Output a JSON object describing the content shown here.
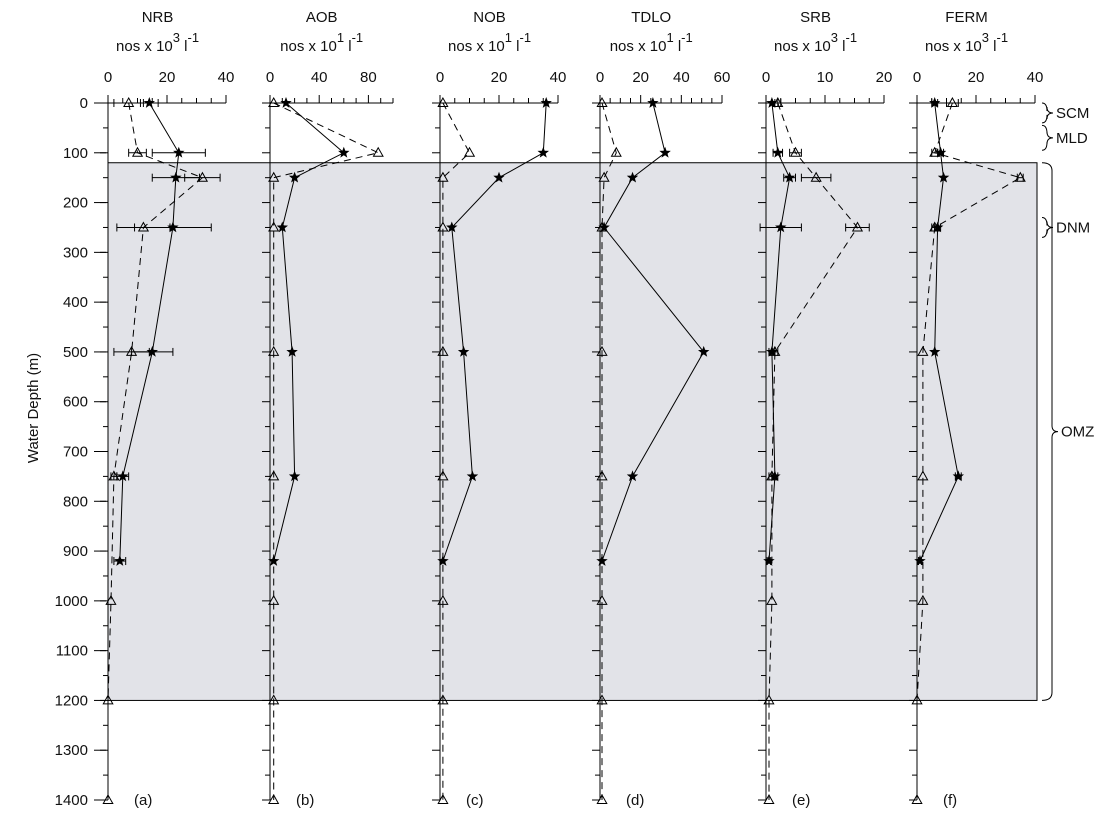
{
  "chart_data": {
    "type": "line",
    "ylabel": "Water Depth (m)",
    "ylim": [
      1400,
      0
    ],
    "yticks": [
      0,
      100,
      200,
      300,
      400,
      500,
      600,
      700,
      800,
      900,
      1000,
      1100,
      1200,
      1300,
      1400
    ],
    "shaded_region": {
      "from_depth": 120,
      "to_depth": 1200
    },
    "zone_labels": [
      {
        "text": "SCM",
        "from": 0,
        "to": 40
      },
      {
        "text": "MLD",
        "from": 45,
        "to": 95
      },
      {
        "text": "DNM",
        "from": 230,
        "to": 270
      },
      {
        "text": "OMZ",
        "from": 120,
        "to": 1200
      }
    ],
    "panels": [
      {
        "id": "a",
        "name": "NRB",
        "unit_exp": "3",
        "xlim": [
          0,
          40
        ],
        "xticks": [
          0,
          20,
          40
        ],
        "solid": {
          "depth": [
            0,
            100,
            150,
            250,
            500,
            750,
            920
          ],
          "values": [
            14,
            24,
            23,
            22,
            15,
            5,
            4
          ],
          "err": [
            3,
            9,
            8,
            13,
            7,
            2,
            2
          ]
        },
        "dashed": {
          "depth": [
            0,
            100,
            150,
            250,
            500,
            750,
            1000,
            1200,
            1400
          ],
          "values": [
            7,
            10,
            32,
            12,
            8,
            2,
            1,
            0,
            0
          ],
          "err": [
            5,
            3,
            6,
            9,
            6,
            1,
            0,
            0,
            0
          ]
        }
      },
      {
        "id": "b",
        "name": "AOB",
        "unit_exp": "1",
        "xlim": [
          0,
          100
        ],
        "xticks": [
          0,
          40,
          80
        ],
        "solid": {
          "depth": [
            0,
            100,
            150,
            250,
            500,
            750,
            920
          ],
          "values": [
            13,
            60,
            20,
            10,
            18,
            20,
            3
          ],
          "err": [
            0,
            0,
            0,
            0,
            0,
            0,
            0
          ]
        },
        "dashed": {
          "depth": [
            0,
            100,
            150,
            250,
            500,
            750,
            1000,
            1200,
            1400
          ],
          "values": [
            3,
            88,
            3,
            3,
            3,
            3,
            3,
            3,
            3
          ],
          "err": [
            0,
            0,
            0,
            0,
            0,
            0,
            0,
            0,
            0
          ]
        }
      },
      {
        "id": "c",
        "name": "NOB",
        "unit_exp": "1",
        "xlim": [
          0,
          40
        ],
        "xticks": [
          0,
          20,
          40
        ],
        "solid": {
          "depth": [
            0,
            100,
            150,
            250,
            500,
            750,
            920
          ],
          "values": [
            36,
            35,
            20,
            4,
            8,
            11,
            1
          ],
          "err": [
            0,
            0,
            0,
            0,
            0,
            0,
            0
          ]
        },
        "dashed": {
          "depth": [
            0,
            100,
            150,
            250,
            500,
            750,
            1000,
            1200,
            1400
          ],
          "values": [
            1,
            10,
            1,
            1,
            1,
            1,
            1,
            1,
            1
          ],
          "err": [
            0,
            0,
            0,
            0,
            0,
            0,
            0,
            0,
            0
          ]
        }
      },
      {
        "id": "d",
        "name": "TDLO",
        "unit_exp": "1",
        "xlim": [
          0,
          60
        ],
        "xticks": [
          0,
          20,
          40,
          60
        ],
        "solid": {
          "depth": [
            0,
            100,
            150,
            250,
            500,
            750,
            920
          ],
          "values": [
            26,
            32,
            16,
            2,
            51,
            16,
            1
          ],
          "err": [
            0,
            0,
            0,
            0,
            0,
            0,
            0
          ]
        },
        "dashed": {
          "depth": [
            0,
            100,
            150,
            250,
            500,
            750,
            1000,
            1200,
            1400
          ],
          "values": [
            1,
            8,
            2,
            1,
            1,
            1,
            1,
            1,
            1
          ],
          "err": [
            0,
            0,
            0,
            0,
            0,
            0,
            0,
            0,
            0
          ]
        }
      },
      {
        "id": "e",
        "name": "SRB",
        "unit_exp": "3",
        "xlim": [
          0,
          20
        ],
        "xticks": [
          0,
          10,
          20
        ],
        "solid": {
          "depth": [
            0,
            100,
            150,
            250,
            500,
            750,
            920
          ],
          "values": [
            1,
            2,
            4,
            2.5,
            1,
            1.5,
            0.5
          ],
          "err": [
            1,
            0.8,
            1,
            3.5,
            0.5,
            0.5,
            0.3
          ]
        },
        "dashed": {
          "depth": [
            0,
            100,
            150,
            250,
            500,
            750,
            1000,
            1200,
            1400
          ],
          "values": [
            2,
            5,
            8.5,
            15.5,
            1.5,
            1,
            1,
            0.5,
            0.5
          ],
          "err": [
            0.5,
            1,
            2.5,
            2,
            0.5,
            0.5,
            0,
            0,
            0
          ]
        }
      },
      {
        "id": "f",
        "name": "FERM",
        "unit_exp": "3",
        "xlim": [
          0,
          40
        ],
        "xticks": [
          0,
          20,
          40
        ],
        "solid": {
          "depth": [
            0,
            100,
            150,
            250,
            500,
            750,
            920
          ],
          "values": [
            6,
            8,
            9,
            7,
            6,
            14,
            1
          ],
          "err": [
            1,
            1,
            0,
            1,
            0,
            1,
            0.5
          ]
        },
        "dashed": {
          "depth": [
            0,
            100,
            150,
            250,
            500,
            750,
            1000,
            1200,
            1400
          ],
          "values": [
            12,
            6,
            35,
            6,
            2,
            2,
            2,
            0,
            0
          ],
          "err": [
            2,
            1,
            1,
            1,
            0,
            0,
            0,
            0,
            0
          ]
        }
      }
    ],
    "unit_prefix": "nos x 10",
    "unit_suffix": "l",
    "unit_suffix_exp": "-1"
  }
}
